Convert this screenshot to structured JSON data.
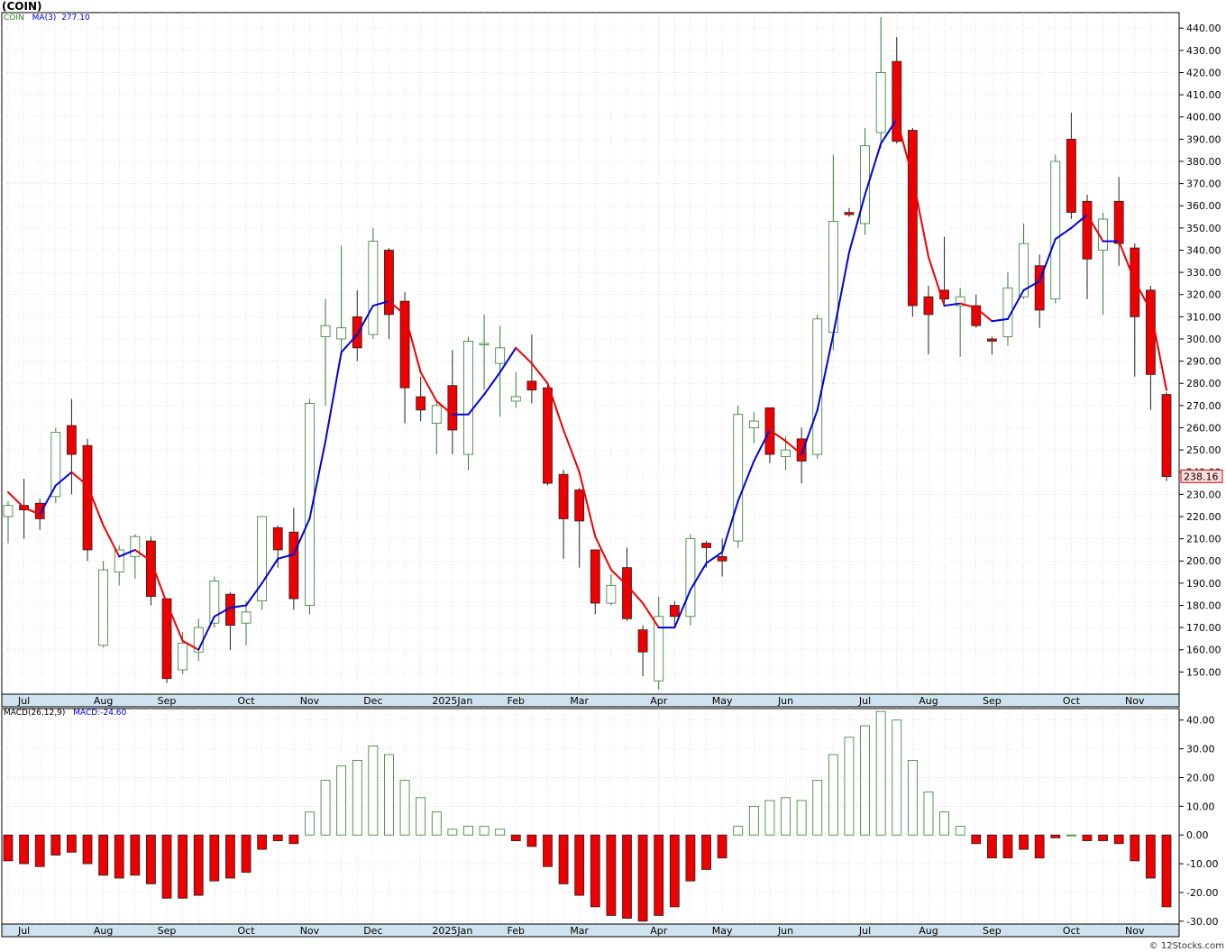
{
  "header": {
    "title": "(COIN)"
  },
  "price_legend": {
    "symbol": "COIN",
    "ma_label": "MA(3)",
    "ma_value": "277.10"
  },
  "macd_legend": {
    "label": "MACD(26,12,9)",
    "value_label": "MACD:-24.60"
  },
  "last_price": "238.16",
  "footer": "© 12Stocks.com",
  "colors": {
    "up": "#2e7d2e",
    "down": "#ee0000",
    "ma_up": "#0000dd",
    "ma_down": "#ee0000",
    "axis_band": "#cfe2ee",
    "grid": "#c8c8c8"
  },
  "chart_data": [
    {
      "type": "candlestick",
      "title": "(COIN)",
      "ylim": [
        140,
        447
      ],
      "yticks": [
        150,
        160,
        170,
        180,
        190,
        200,
        210,
        220,
        230,
        240,
        250,
        260,
        270,
        280,
        290,
        300,
        310,
        320,
        330,
        340,
        350,
        360,
        370,
        380,
        390,
        400,
        410,
        420,
        430,
        440
      ],
      "ytick_labels": [
        "150.00",
        "160.00",
        "170.00",
        "180.00",
        "190.00",
        "200.00",
        "210.00",
        "220.00",
        "230.00",
        "240.00",
        "250.00",
        "260.00",
        "270.00",
        "280.00",
        "290.00",
        "300.00",
        "310.00",
        "320.00",
        "330.00",
        "340.00",
        "350.00",
        "360.00",
        "370.00",
        "380.00",
        "390.00",
        "400.00",
        "410.00",
        "420.00",
        "430.00",
        "440.00"
      ],
      "month_labels": [
        {
          "label": "Jul",
          "bar": 1
        },
        {
          "label": "Aug",
          "bar": 6
        },
        {
          "label": "Sep",
          "bar": 10
        },
        {
          "label": "Oct",
          "bar": 15
        },
        {
          "label": "Nov",
          "bar": 19
        },
        {
          "label": "Dec",
          "bar": 23
        },
        {
          "label": "2025Jan",
          "bar": 28
        },
        {
          "label": "Feb",
          "bar": 32
        },
        {
          "label": "Mar",
          "bar": 36
        },
        {
          "label": "Apr",
          "bar": 41
        },
        {
          "label": "May",
          "bar": 45
        },
        {
          "label": "Jun",
          "bar": 49
        },
        {
          "label": "Jul",
          "bar": 54
        },
        {
          "label": "Aug",
          "bar": 58
        },
        {
          "label": "Sep",
          "bar": 62
        },
        {
          "label": "Oct",
          "bar": 67
        },
        {
          "label": "Nov",
          "bar": 71
        }
      ],
      "candles": [
        {
          "o": 220,
          "h": 227,
          "l": 208,
          "c": 225
        },
        {
          "o": 225,
          "h": 237,
          "l": 210,
          "c": 223
        },
        {
          "o": 226,
          "h": 228,
          "l": 214,
          "c": 219
        },
        {
          "o": 229,
          "h": 260,
          "l": 226,
          "c": 258
        },
        {
          "o": 261,
          "h": 273,
          "l": 230,
          "c": 248
        },
        {
          "o": 252,
          "h": 255,
          "l": 200,
          "c": 205
        },
        {
          "o": 162,
          "h": 200,
          "l": 161,
          "c": 196
        },
        {
          "o": 195,
          "h": 207,
          "l": 189,
          "c": 205
        },
        {
          "o": 202,
          "h": 212,
          "l": 192,
          "c": 211
        },
        {
          "o": 209,
          "h": 211,
          "l": 180,
          "c": 184
        },
        {
          "o": 183,
          "h": 183,
          "l": 145,
          "c": 147
        },
        {
          "o": 151,
          "h": 168,
          "l": 149,
          "c": 163
        },
        {
          "o": 159,
          "h": 174,
          "l": 155,
          "c": 170
        },
        {
          "o": 172,
          "h": 193,
          "l": 170,
          "c": 191
        },
        {
          "o": 185,
          "h": 186,
          "l": 160,
          "c": 171
        },
        {
          "o": 172,
          "h": 182,
          "l": 162,
          "c": 177
        },
        {
          "o": 182,
          "h": 220,
          "l": 178,
          "c": 220
        },
        {
          "o": 215,
          "h": 216,
          "l": 197,
          "c": 205
        },
        {
          "o": 213,
          "h": 224,
          "l": 178,
          "c": 183
        },
        {
          "o": 180,
          "h": 273,
          "l": 176,
          "c": 271
        },
        {
          "o": 301,
          "h": 318,
          "l": 270,
          "c": 306
        },
        {
          "o": 300,
          "h": 342,
          "l": 293,
          "c": 305
        },
        {
          "o": 310,
          "h": 322,
          "l": 290,
          "c": 296
        },
        {
          "o": 302,
          "h": 350,
          "l": 300,
          "c": 344
        },
        {
          "o": 340,
          "h": 341,
          "l": 300,
          "c": 311
        },
        {
          "o": 317,
          "h": 321,
          "l": 262,
          "c": 278
        },
        {
          "o": 274,
          "h": 283,
          "l": 263,
          "c": 268
        },
        {
          "o": 262,
          "h": 272,
          "l": 248,
          "c": 270
        },
        {
          "o": 279,
          "h": 295,
          "l": 248,
          "c": 259
        },
        {
          "o": 248,
          "h": 301,
          "l": 241,
          "c": 299
        },
        {
          "o": 298,
          "h": 311,
          "l": 277,
          "c": 298
        },
        {
          "o": 289,
          "h": 306,
          "l": 265,
          "c": 296
        },
        {
          "o": 272,
          "h": 285,
          "l": 269,
          "c": 274
        },
        {
          "o": 281,
          "h": 302,
          "l": 271,
          "c": 277
        },
        {
          "o": 278,
          "h": 279,
          "l": 234,
          "c": 235
        },
        {
          "o": 239,
          "h": 241,
          "l": 201,
          "c": 219
        },
        {
          "o": 232,
          "h": 233,
          "l": 197,
          "c": 218
        },
        {
          "o": 205,
          "h": 205,
          "l": 176,
          "c": 181
        },
        {
          "o": 181,
          "h": 194,
          "l": 180,
          "c": 189
        },
        {
          "o": 197,
          "h": 206,
          "l": 173,
          "c": 174
        },
        {
          "o": 169,
          "h": 171,
          "l": 148,
          "c": 159
        },
        {
          "o": 146,
          "h": 184,
          "l": 142,
          "c": 175
        },
        {
          "o": 180,
          "h": 182,
          "l": 170,
          "c": 175
        },
        {
          "o": 175,
          "h": 212,
          "l": 171,
          "c": 210
        },
        {
          "o": 208,
          "h": 209,
          "l": 197,
          "c": 206
        },
        {
          "o": 202,
          "h": 210,
          "l": 193,
          "c": 200
        },
        {
          "o": 209,
          "h": 270,
          "l": 206,
          "c": 266
        },
        {
          "o": 260,
          "h": 267,
          "l": 253,
          "c": 263
        },
        {
          "o": 269,
          "h": 269,
          "l": 244,
          "c": 248
        },
        {
          "o": 247,
          "h": 256,
          "l": 241,
          "c": 250
        },
        {
          "o": 255,
          "h": 260,
          "l": 235,
          "c": 245
        },
        {
          "o": 248,
          "h": 311,
          "l": 246,
          "c": 309
        },
        {
          "o": 303,
          "h": 383,
          "l": 295,
          "c": 353
        },
        {
          "o": 357,
          "h": 359,
          "l": 355,
          "c": 356
        },
        {
          "o": 352,
          "h": 395,
          "l": 347,
          "c": 387
        },
        {
          "o": 393,
          "h": 445,
          "l": 386,
          "c": 420
        },
        {
          "o": 425,
          "h": 436,
          "l": 388,
          "c": 389
        },
        {
          "o": 394,
          "h": 395,
          "l": 310,
          "c": 315
        },
        {
          "o": 319,
          "h": 324,
          "l": 293,
          "c": 311
        },
        {
          "o": 322,
          "h": 346,
          "l": 315,
          "c": 318
        },
        {
          "o": 315,
          "h": 323,
          "l": 292,
          "c": 319
        },
        {
          "o": 315,
          "h": 320,
          "l": 305,
          "c": 306
        },
        {
          "o": 300,
          "h": 301,
          "l": 293,
          "c": 299
        },
        {
          "o": 301,
          "h": 330,
          "l": 297,
          "c": 323
        },
        {
          "o": 319,
          "h": 352,
          "l": 318,
          "c": 343
        },
        {
          "o": 333,
          "h": 338,
          "l": 305,
          "c": 313
        },
        {
          "o": 318,
          "h": 383,
          "l": 316,
          "c": 380
        },
        {
          "o": 390,
          "h": 402,
          "l": 354,
          "c": 357
        },
        {
          "o": 362,
          "h": 365,
          "l": 318,
          "c": 336
        },
        {
          "o": 340,
          "h": 357,
          "l": 311,
          "c": 354
        },
        {
          "o": 362,
          "h": 373,
          "l": 333,
          "c": 343
        },
        {
          "o": 341,
          "h": 343,
          "l": 283,
          "c": 310
        },
        {
          "o": 322,
          "h": 324,
          "l": 268,
          "c": 284
        },
        {
          "o": 275,
          "h": 276,
          "l": 236,
          "c": 238
        }
      ],
      "ma3": [
        231,
        224,
        221,
        234,
        240,
        234,
        216,
        202,
        205,
        200,
        181,
        164,
        160,
        175,
        179,
        180,
        190,
        201,
        203,
        219,
        254,
        294,
        302,
        315,
        317,
        311,
        285,
        272,
        266,
        266,
        275,
        285,
        296,
        289,
        280,
        259,
        240,
        211,
        196,
        189,
        181,
        170,
        170,
        187,
        199,
        204,
        227,
        245,
        259,
        254,
        248,
        268,
        302,
        339,
        365,
        388,
        399,
        373,
        337,
        315,
        316,
        314,
        308,
        309,
        322,
        326,
        345,
        350,
        356,
        344,
        344,
        326,
        313,
        277
      ]
    },
    {
      "type": "bar",
      "title": "MACD(26,12,9)",
      "ylim": [
        -31,
        44
      ],
      "yticks": [
        -30,
        -20,
        -10,
        0,
        10,
        20,
        30,
        40
      ],
      "ytick_labels": [
        "-30.00",
        "-20.00",
        "-10.00",
        "0.00",
        "10.00",
        "20.00",
        "30.00",
        "40.00"
      ],
      "values": [
        -9,
        -10,
        -11,
        -7,
        -6,
        -10,
        -14,
        -15,
        -14,
        -17,
        -22,
        -22,
        -21,
        -16,
        -15,
        -13,
        -5,
        -2,
        -3,
        8,
        19,
        24,
        26,
        31,
        28,
        19,
        13,
        8,
        2,
        3,
        3,
        2,
        -2,
        -4,
        -11,
        -17,
        -21,
        -25,
        -28,
        -29,
        -30,
        -28,
        -25,
        -16,
        -12,
        -8,
        3,
        10,
        12,
        13,
        12,
        19,
        28,
        34,
        38,
        43,
        40,
        26,
        15,
        8,
        3,
        -3,
        -8,
        -8,
        -5,
        -8,
        -1,
        0,
        -2,
        -2,
        -3,
        -9,
        -15,
        -25
      ]
    }
  ]
}
